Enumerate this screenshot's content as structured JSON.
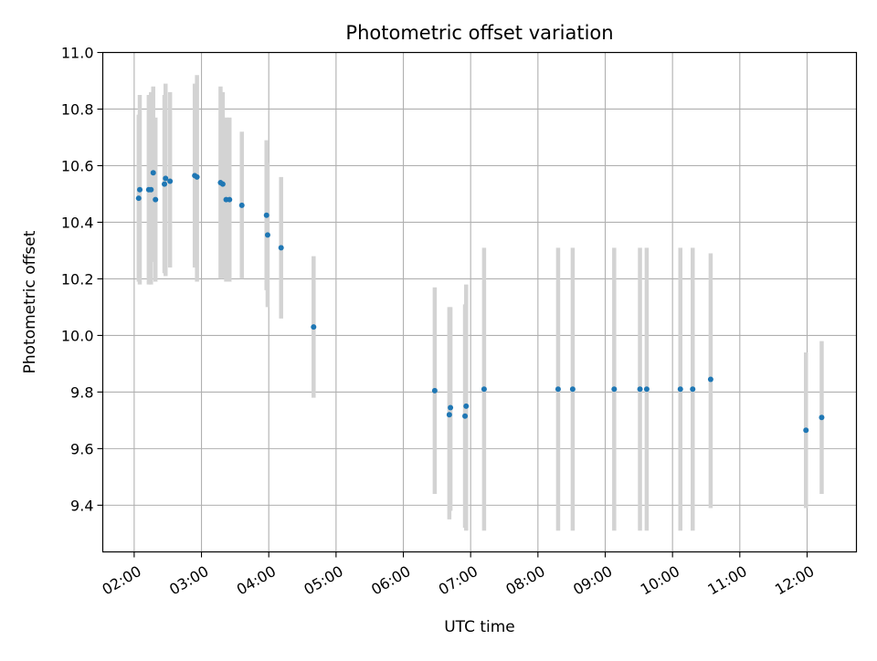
{
  "chart_data": {
    "type": "scatter",
    "title": "Photometric offset variation",
    "xlabel": "UTC time",
    "ylabel": "Photometric offset",
    "xlim": [
      "01:32",
      "12:44"
    ],
    "ylim": [
      9.235,
      11.0
    ],
    "xticks": [
      "02:00",
      "03:00",
      "04:00",
      "05:00",
      "06:00",
      "07:00",
      "08:00",
      "09:00",
      "10:00",
      "11:00",
      "12:00"
    ],
    "yticks": [
      "9.4",
      "9.6",
      "9.8",
      "10.0",
      "10.2",
      "10.4",
      "10.6",
      "10.8",
      "11.0"
    ],
    "grid": true,
    "colors": {
      "points": "#1f77b4",
      "errorbars": "#d3d3d3",
      "grid": "#b0b0b0"
    },
    "points": [
      {
        "t": "02:04",
        "y": 10.485,
        "lo": 10.19,
        "hi": 10.78
      },
      {
        "t": "02:05",
        "y": 10.515,
        "lo": 10.18,
        "hi": 10.85
      },
      {
        "t": "02:13",
        "y": 10.515,
        "lo": 10.18,
        "hi": 10.85
      },
      {
        "t": "02:15",
        "y": 10.515,
        "lo": 10.18,
        "hi": 10.86
      },
      {
        "t": "02:17",
        "y": 10.575,
        "lo": 10.26,
        "hi": 10.88
      },
      {
        "t": "02:19",
        "y": 10.48,
        "lo": 10.19,
        "hi": 10.77
      },
      {
        "t": "02:27",
        "y": 10.535,
        "lo": 10.22,
        "hi": 10.85
      },
      {
        "t": "02:28",
        "y": 10.555,
        "lo": 10.21,
        "hi": 10.89
      },
      {
        "t": "02:32",
        "y": 10.545,
        "lo": 10.24,
        "hi": 10.86
      },
      {
        "t": "02:54",
        "y": 10.565,
        "lo": 10.24,
        "hi": 10.89
      },
      {
        "t": "02:56",
        "y": 10.56,
        "lo": 10.19,
        "hi": 10.92
      },
      {
        "t": "03:17",
        "y": 10.54,
        "lo": 10.2,
        "hi": 10.88
      },
      {
        "t": "03:19",
        "y": 10.535,
        "lo": 10.2,
        "hi": 10.86
      },
      {
        "t": "03:22",
        "y": 10.48,
        "lo": 10.19,
        "hi": 10.77
      },
      {
        "t": "03:25",
        "y": 10.48,
        "lo": 10.19,
        "hi": 10.77
      },
      {
        "t": "03:36",
        "y": 10.46,
        "lo": 10.2,
        "hi": 10.72
      },
      {
        "t": "03:58",
        "y": 10.425,
        "lo": 10.16,
        "hi": 10.69
      },
      {
        "t": "03:59",
        "y": 10.355,
        "lo": 10.1,
        "hi": 10.61
      },
      {
        "t": "04:11",
        "y": 10.31,
        "lo": 10.06,
        "hi": 10.56
      },
      {
        "t": "04:40",
        "y": 10.03,
        "lo": 9.78,
        "hi": 10.28
      },
      {
        "t": "06:28",
        "y": 9.805,
        "lo": 9.44,
        "hi": 10.17
      },
      {
        "t": "06:41",
        "y": 9.72,
        "lo": 9.35,
        "hi": 10.1
      },
      {
        "t": "06:42",
        "y": 9.745,
        "lo": 9.38,
        "hi": 10.1
      },
      {
        "t": "06:55",
        "y": 9.715,
        "lo": 9.32,
        "hi": 10.11
      },
      {
        "t": "06:56",
        "y": 9.75,
        "lo": 9.31,
        "hi": 10.18
      },
      {
        "t": "07:12",
        "y": 9.81,
        "lo": 9.31,
        "hi": 10.31
      },
      {
        "t": "08:18",
        "y": 9.81,
        "lo": 9.31,
        "hi": 10.31
      },
      {
        "t": "08:31",
        "y": 9.81,
        "lo": 9.31,
        "hi": 10.31
      },
      {
        "t": "09:08",
        "y": 9.81,
        "lo": 9.31,
        "hi": 10.31
      },
      {
        "t": "09:31",
        "y": 9.81,
        "lo": 9.31,
        "hi": 10.31
      },
      {
        "t": "09:37",
        "y": 9.81,
        "lo": 9.31,
        "hi": 10.31
      },
      {
        "t": "10:07",
        "y": 9.81,
        "lo": 9.31,
        "hi": 10.31
      },
      {
        "t": "10:18",
        "y": 9.81,
        "lo": 9.31,
        "hi": 10.31
      },
      {
        "t": "10:34",
        "y": 9.845,
        "lo": 9.39,
        "hi": 10.29
      },
      {
        "t": "11:59",
        "y": 9.665,
        "lo": 9.39,
        "hi": 9.94
      },
      {
        "t": "12:13",
        "y": 9.71,
        "lo": 9.44,
        "hi": 9.98
      }
    ]
  }
}
